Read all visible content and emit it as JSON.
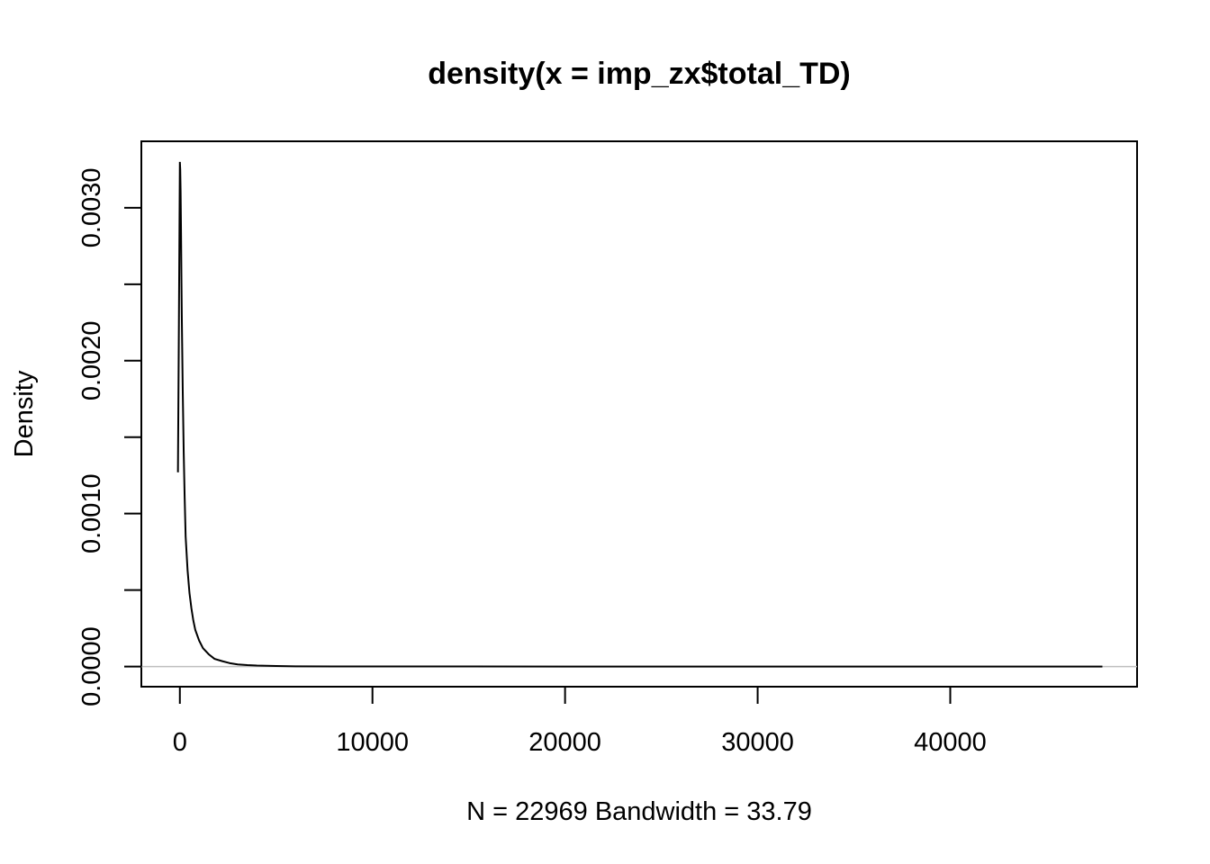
{
  "chart_data": {
    "type": "line",
    "title": "density(x = imp_zx$total_TD)",
    "xlabel": "N = 22969   Bandwidth = 33.79",
    "ylabel": "Density",
    "xlim": [
      -2000,
      49700
    ],
    "ylim": [
      -0.000132,
      0.003435
    ],
    "x_ticks": [
      0,
      10000,
      20000,
      30000,
      40000
    ],
    "x_tick_labels": [
      "0",
      "10000",
      "20000",
      "30000",
      "40000"
    ],
    "y_ticks": [
      0.0,
      0.0005,
      0.001,
      0.0015,
      0.002,
      0.0025,
      0.003
    ],
    "y_tick_labels": [
      "0.0000",
      "",
      "0.0010",
      "",
      "0.0020",
      "",
      "0.0030"
    ],
    "grid": false,
    "zero_line": true,
    "line_color": "#000000",
    "zero_line_color": "#bebebe",
    "series": [
      {
        "x": [
          -100,
          -50,
          0,
          20,
          40,
          60,
          80,
          100,
          150,
          200,
          250,
          300,
          400,
          500,
          600,
          700,
          800,
          1000,
          1200,
          1500,
          1800,
          2200,
          2600,
          3000,
          3500,
          4000,
          5000,
          6000,
          8000,
          10000,
          15000,
          20000,
          30000,
          40000,
          47900
        ],
        "y": [
          0.00127,
          0.00225,
          0.0033,
          0.00325,
          0.0031,
          0.00285,
          0.00255,
          0.0023,
          0.0018,
          0.0014,
          0.0011,
          0.00085,
          0.00063,
          0.00048,
          0.00038,
          0.0003,
          0.00024,
          0.00017,
          0.00012,
          8e-05,
          5e-05,
          3.5e-05,
          2.2e-05,
          1.4e-05,
          9e-06,
          6e-06,
          3e-06,
          1.5e-06,
          5e-07,
          2e-07,
          1e-07,
          5e-08,
          2e-08,
          1e-08,
          0.0
        ]
      }
    ]
  }
}
